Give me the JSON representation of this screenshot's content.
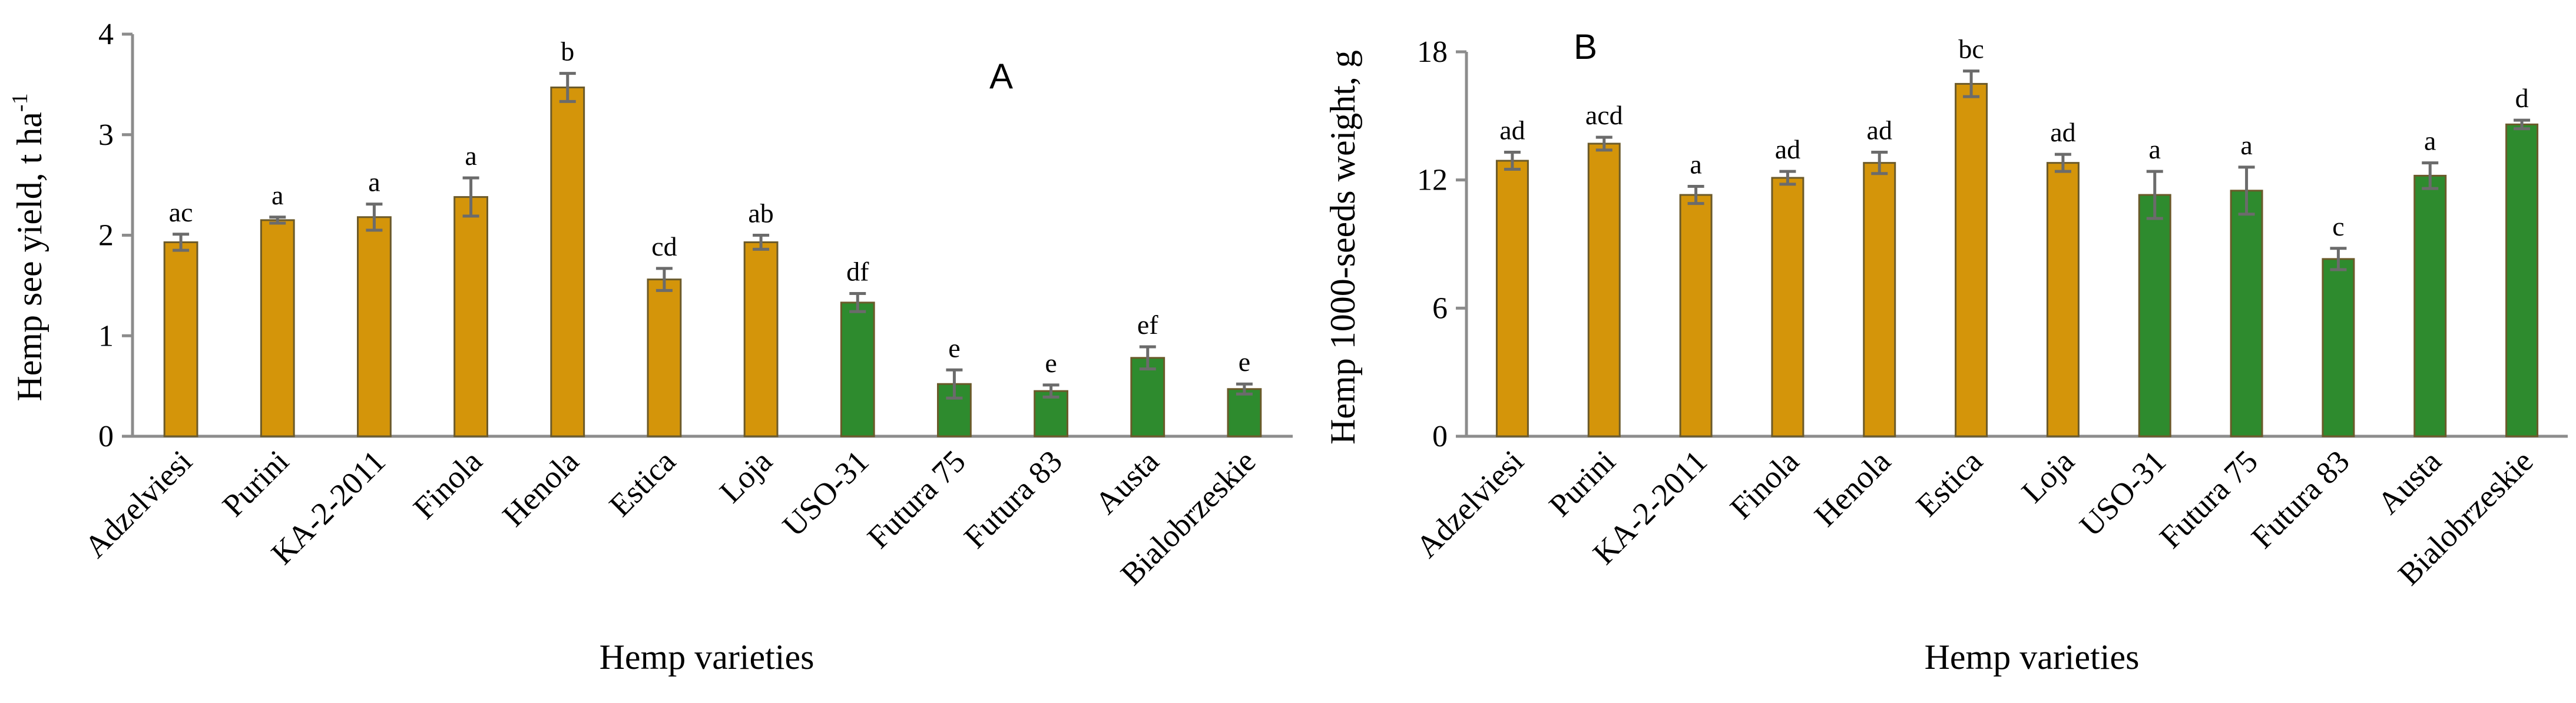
{
  "chart_data": [
    {
      "type": "bar",
      "panel_label": "A",
      "title": "",
      "ylabel": "Hemp see yield, t ha",
      "ylabel_superscript": "-1",
      "xlabel": "Hemp varieties",
      "ylim": [
        0,
        4
      ],
      "yticks": [
        0,
        1,
        2,
        3,
        4
      ],
      "categories": [
        "Adzelviesi",
        "Purini",
        "KA-2-2011",
        "Finola",
        "Henola",
        "Estica",
        "Loja",
        "USO-31",
        "Futura 75",
        "Futura 83",
        "Austa",
        "Bialobrzeskie"
      ],
      "values": [
        1.93,
        2.15,
        2.18,
        2.38,
        3.47,
        1.56,
        1.93,
        1.33,
        0.52,
        0.45,
        0.78,
        0.47
      ],
      "errors": [
        0.08,
        0.03,
        0.13,
        0.19,
        0.14,
        0.11,
        0.07,
        0.09,
        0.14,
        0.06,
        0.11,
        0.05
      ],
      "significance": [
        "ac",
        "a",
        "a",
        "a",
        "b",
        "cd",
        "ab",
        "df",
        "e",
        "e",
        "ef",
        "e"
      ],
      "bar_colors": [
        "#d4950a",
        "#d4950a",
        "#d4950a",
        "#d4950a",
        "#d4950a",
        "#d4950a",
        "#d4950a",
        "#2e8b2e",
        "#2e8b2e",
        "#2e8b2e",
        "#2e8b2e",
        "#2e8b2e"
      ]
    },
    {
      "type": "bar",
      "panel_label": "B",
      "title": "",
      "ylabel": "Hemp 1000-seeds weight, g",
      "xlabel": "Hemp varieties",
      "ylim": [
        0,
        18
      ],
      "yticks": [
        0,
        6,
        12,
        18
      ],
      "categories": [
        "Adzelviesi",
        "Purini",
        "KA-2-2011",
        "Finola",
        "Henola",
        "Estica",
        "Loja",
        "USO-31",
        "Futura 75",
        "Futura 83",
        "Austa",
        "Bialobrzeskie"
      ],
      "values": [
        12.9,
        13.7,
        11.3,
        12.1,
        12.8,
        16.5,
        12.8,
        11.3,
        11.5,
        8.3,
        12.2,
        14.6
      ],
      "errors": [
        0.4,
        0.3,
        0.4,
        0.3,
        0.5,
        0.6,
        0.4,
        1.1,
        1.1,
        0.5,
        0.6,
        0.2
      ],
      "significance": [
        "ad",
        "acd",
        "a",
        "ad",
        "ad",
        "bc",
        "ad",
        "a",
        "a",
        "c",
        "a",
        "d"
      ],
      "bar_colors": [
        "#d4950a",
        "#d4950a",
        "#d4950a",
        "#d4950a",
        "#d4950a",
        "#d4950a",
        "#d4950a",
        "#2e8b2e",
        "#2e8b2e",
        "#2e8b2e",
        "#2e8b2e",
        "#2e8b2e"
      ]
    }
  ]
}
